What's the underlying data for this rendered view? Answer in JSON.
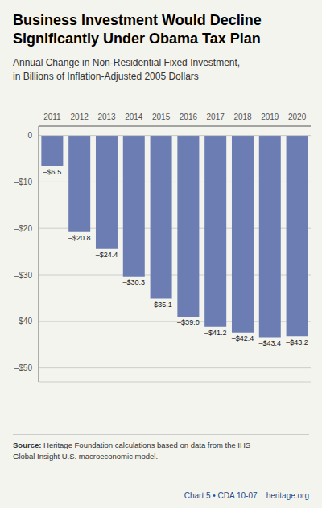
{
  "chart_data": {
    "type": "bar",
    "title": "Business Investment Would Decline\nSignificantly Under Obama Tax Plan",
    "subtitle": "Annual Change in Non-Residential Fixed Investment,\nin Billions of Inflation-Adjusted 2005 Dollars",
    "categories": [
      "2011",
      "2012",
      "2013",
      "2014",
      "2015",
      "2016",
      "2017",
      "2018",
      "2019",
      "2020"
    ],
    "values": [
      -6.5,
      -20.8,
      -24.4,
      -30.3,
      -35.1,
      -39.0,
      -41.2,
      -42.4,
      -43.4,
      -43.2
    ],
    "value_labels": [
      "–$6.5",
      "–$20.8",
      "–$24.4",
      "–$30.3",
      "–$35.1",
      "–$39.0",
      "–$41.2",
      "–$42.4",
      "–$43.4",
      "–$43.2"
    ],
    "data_labels": true,
    "color": "#6b7db3",
    "ylim": [
      -53,
      2
    ],
    "yticks": [
      0,
      {
        "value": -10,
        "label": "–$10"
      },
      {
        "value": -20,
        "label": "–$20"
      },
      {
        "value": -30,
        "label": "–$30"
      },
      {
        "value": -40,
        "label": "–$40"
      },
      {
        "value": -50,
        "label": "–$50"
      }
    ],
    "grid": true,
    "annotations": [
      "Source: Heritage Foundation calculations based on data from the IHS\nGlobal Insight U.S. macroeconomic model.",
      "Chart 5 • CDA 10-07    heritage.org"
    ]
  }
}
